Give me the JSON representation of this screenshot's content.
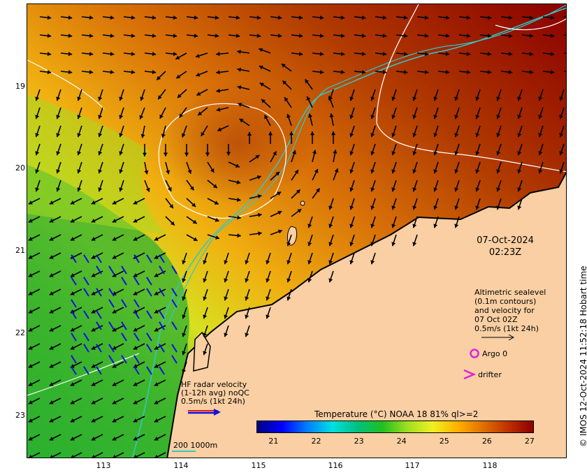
{
  "map": {
    "x_axis": {
      "unit": "degrees east",
      "ticks": [
        "113",
        "114",
        "115",
        "116",
        "117",
        "118"
      ]
    },
    "y_axis": {
      "unit": "degrees south",
      "ticks": [
        "19",
        "20",
        "21",
        "22",
        "23"
      ]
    },
    "timestamp": {
      "date": "07-Oct-2024",
      "time": "02:23Z"
    }
  },
  "legends": {
    "altimetry": {
      "lines": [
        "Altimetric sealevel",
        "(0.1m contours)",
        "and velocity for",
        "07 Oct 02Z",
        "0.5m/s (1kt 24h)"
      ]
    },
    "argo": {
      "label": "Argo 0",
      "color": "#e020e0"
    },
    "drifter": {
      "label": "drifter",
      "color": "#e020e0"
    },
    "hf_radar": {
      "lines": [
        "HF radar velocity",
        "(1-12h avg) noQC",
        "0.5m/s (1kt 24h)"
      ],
      "color": "#1010e0"
    },
    "bathymetry": {
      "label": "200  1000m"
    }
  },
  "colorbar": {
    "title": "Temperature (°C) NOAA 18 81% ql>=2",
    "ticks": [
      "21",
      "22",
      "23",
      "24",
      "25",
      "26",
      "27"
    ],
    "range": [
      20.6,
      27.1
    ],
    "colors": [
      "#00007f",
      "#0000ff",
      "#0080ff",
      "#00e0e0",
      "#00c080",
      "#20c020",
      "#a0e020",
      "#f0f020",
      "#ffb000",
      "#e07000",
      "#c03000",
      "#8b0000"
    ]
  },
  "credit": "© IMOS 12-Oct-2024 11:52:18 Hobart time",
  "colors": {
    "land": "#f9cfa3",
    "contour_white": "#ffffff",
    "contour_cyan": "#30c8c8",
    "arrow": "#000000"
  }
}
